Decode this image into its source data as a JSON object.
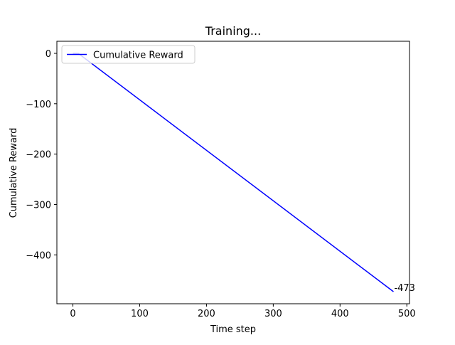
{
  "chart_data": {
    "type": "line",
    "title": "Training...",
    "xlabel": "Time step",
    "ylabel": "Cumulative Reward",
    "xlim": [
      -24,
      504
    ],
    "ylim": [
      -497,
      24
    ],
    "xticks": [
      0,
      100,
      200,
      300,
      400,
      500
    ],
    "yticks": [
      0,
      -100,
      -200,
      -300,
      -400
    ],
    "xtick_labels": [
      "0",
      "100",
      "200",
      "300",
      "400",
      "500"
    ],
    "ytick_labels": [
      "0",
      "−100",
      "−200",
      "−300",
      "−400"
    ],
    "grid": false,
    "legend_position": "top-left",
    "series": [
      {
        "name": "Cumulative Reward",
        "color": "#0000ff",
        "x": [
          0,
          8,
          480
        ],
        "y": [
          0,
          0,
          -473
        ]
      }
    ],
    "annotations": [
      {
        "text": "-473",
        "x": 480,
        "y": -473
      }
    ]
  }
}
